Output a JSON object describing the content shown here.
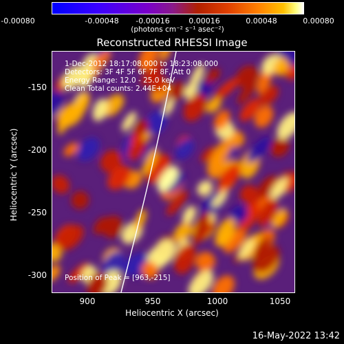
{
  "colorbar": {
    "ticks": [
      "-0.00080",
      "-0.00048",
      "-0.00016",
      "0.00016",
      "0.00048",
      "0.00080"
    ],
    "unit_label": "(photons cm⁻² s⁻¹ asec⁻²)"
  },
  "plot": {
    "title": "Reconstructed RHESSI Image",
    "info_lines": [
      "1-Dec-2012 18:17:08.000 to 18:23:08.000",
      "Detectors: 3F 4F 5F 6F 7F 8F, Att 0",
      "Energy Range: 12.0 - 25.0 keV",
      "Clean    Total counts: 2.44E+04"
    ],
    "peak_label": "Position of Peak = [963,-215]",
    "xlabel": "Heliocentric X (arcsec)",
    "ylabel": "Heliocentric Y (arcsec)",
    "xticks": [
      "900",
      "950",
      "1000",
      "1050"
    ],
    "yticks": [
      "-150",
      "-200",
      "-250",
      "-300"
    ]
  },
  "footer": {
    "timestamp": "16-May-2022 13:42"
  }
}
